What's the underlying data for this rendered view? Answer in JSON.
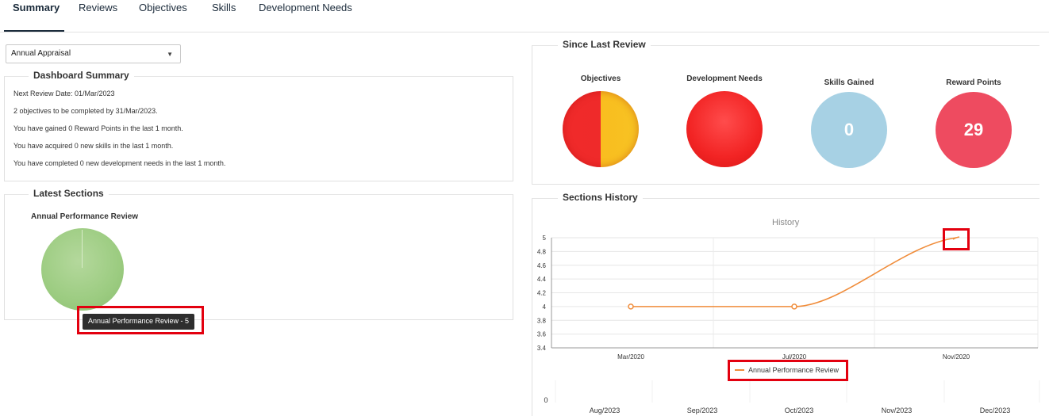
{
  "tabs": [
    {
      "label": "Summary",
      "active": true
    },
    {
      "label": "Reviews",
      "active": false
    },
    {
      "label": "Objectives",
      "active": false
    },
    {
      "label": "Skills",
      "active": false
    },
    {
      "label": "Development Needs",
      "active": false
    }
  ],
  "appraisal_select": {
    "value": "Annual Appraisal"
  },
  "dashboard_summary": {
    "legend": "Dashboard Summary",
    "lines": [
      "Next Review Date: 01/Mar/2023",
      "2 objectives to be completed by 31/Mar/2023.",
      "You have gained 0 Reward Points in the last 1 month.",
      "You have acquired 0 new skills in the last 1 month.",
      "You have completed 0 new development needs in the last 1 month."
    ]
  },
  "latest_sections": {
    "legend": "Latest Sections",
    "chart_title": "Annual Performance Review",
    "tooltip": "Annual Performance Review - 5"
  },
  "since_last_review": {
    "legend": "Since Last Review",
    "objectives_label": "Objectives",
    "dev_needs_label": "Development Needs",
    "skills_label": "Skills Gained",
    "skills_value": "0",
    "reward_label": "Reward Points",
    "reward_value": "29",
    "colors": {
      "red": "#f02a2a",
      "yellow": "#f9bd1f",
      "blue": "#a7d1e4",
      "pink": "#ee4b60"
    }
  },
  "sections_history": {
    "legend": "Sections History"
  },
  "chart_data": [
    {
      "type": "line",
      "title": "History",
      "x": [
        "Mar/2020",
        "Jul/2020",
        "Nov/2020"
      ],
      "series": [
        {
          "name": "Annual Performance Review",
          "values": [
            4,
            4,
            5
          ],
          "color": "#f08c3a"
        }
      ],
      "yticks": [
        "5",
        "4.8",
        "4.6",
        "4.4",
        "4.2",
        "4",
        "3.8",
        "3.6",
        "3.4"
      ],
      "ylim": [
        3.4,
        5
      ],
      "grid": true,
      "legend_position": "bottom"
    },
    {
      "type": "line",
      "x": [
        "Aug/2023",
        "Sep/2023",
        "Oct/2023",
        "Nov/2023",
        "Dec/2023"
      ],
      "yticks": [
        "0"
      ],
      "series": []
    }
  ]
}
